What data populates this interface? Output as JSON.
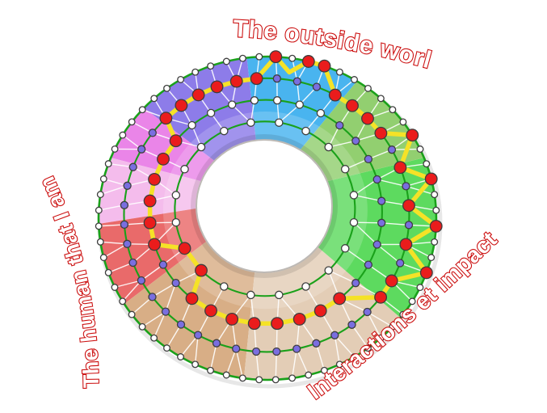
{
  "labels": {
    "top": {
      "text": "The outside world"
    },
    "left": {
      "text": "The human that I am"
    },
    "right": {
      "text": "Interactions et impact"
    }
  },
  "label_style": {
    "outline_color": "#cc1111",
    "fill_color": "#ffffff"
  },
  "diagram": {
    "segments": [
      {
        "name": "blue",
        "group": "The outside world",
        "from": 58,
        "to": 97,
        "color": "#49b4ef"
      },
      {
        "name": "purple",
        "group": "The outside world",
        "from": 97,
        "to": 137,
        "color": "#8d7ce9"
      },
      {
        "name": "violet",
        "group": "The human that I am",
        "from": 137,
        "to": 158,
        "color": "#ea85e8"
      },
      {
        "name": "light-pink",
        "group": "The human that I am",
        "from": 158,
        "to": 182,
        "color": "#f4bcec"
      },
      {
        "name": "red",
        "group": "The human that I am",
        "from": 182,
        "to": 212,
        "color": "#e96a6a"
      },
      {
        "name": "dark-tan",
        "group": "Interactions et impact",
        "from": 212,
        "to": 262,
        "color": "#d8ae86"
      },
      {
        "name": "light-tan",
        "group": "Interactions et impact",
        "from": 262,
        "to": 322,
        "color": "#e3cdb6"
      },
      {
        "name": "bright-green",
        "group": "Interactions et impact",
        "from": 322,
        "to": 382,
        "color": "#5dda5f"
      },
      {
        "name": "light-green",
        "group": "The outside world",
        "from": 22,
        "to": 58,
        "color": "#92cf70"
      }
    ],
    "rings": [
      {
        "name": "inner-ring",
        "nodes": 20,
        "default_node_color": "white"
      },
      {
        "name": "ring-2",
        "nodes": 32,
        "default_node_color": "purple",
        "white_arc": [
          58,
          140
        ]
      },
      {
        "name": "ring-3",
        "nodes": 44,
        "default_node_color": "purple"
      },
      {
        "name": "outer-ring",
        "nodes": 64,
        "default_node_color": "white"
      }
    ],
    "path_stations": [
      [
        94,
        3
      ],
      [
        102,
        3
      ],
      [
        110,
        3
      ],
      [
        119,
        3
      ],
      [
        127,
        3
      ],
      [
        135,
        3
      ],
      [
        141,
        2
      ],
      [
        152,
        2
      ],
      [
        163,
        2
      ],
      [
        174,
        2
      ],
      [
        186,
        2
      ],
      [
        197,
        2
      ],
      [
        207,
        1
      ],
      [
        225,
        1
      ],
      [
        231,
        2
      ],
      [
        242,
        2
      ],
      [
        253,
        2
      ],
      [
        264,
        2
      ],
      [
        276,
        2
      ],
      [
        287,
        2
      ],
      [
        298,
        2
      ],
      [
        309,
        2
      ],
      [
        323,
        3
      ],
      [
        331,
        3
      ],
      [
        340,
        4
      ],
      [
        348,
        3
      ],
      [
        357,
        4
      ],
      [
        4,
        3
      ],
      [
        14,
        4
      ],
      [
        20,
        3
      ],
      [
        31,
        4
      ],
      [
        37,
        3
      ],
      [
        45,
        3
      ],
      [
        53,
        3
      ],
      [
        61,
        3
      ],
      [
        70,
        4
      ],
      [
        76,
        4
      ],
      [
        81.5,
        3.35,
        false
      ],
      [
        87,
        4
      ]
    ],
    "colors": {
      "ring_line": "#1aa11a",
      "mesh_line": "#ffffff",
      "path_yellow": "#f5e227",
      "node_white": "#ffffff",
      "node_purple": "#7a6ee0",
      "node_red": "#ea1c1c",
      "node_stroke": "#3d3d3d",
      "hole_fill": "#ffffff",
      "hole_rim": "#bdb9b5"
    }
  }
}
